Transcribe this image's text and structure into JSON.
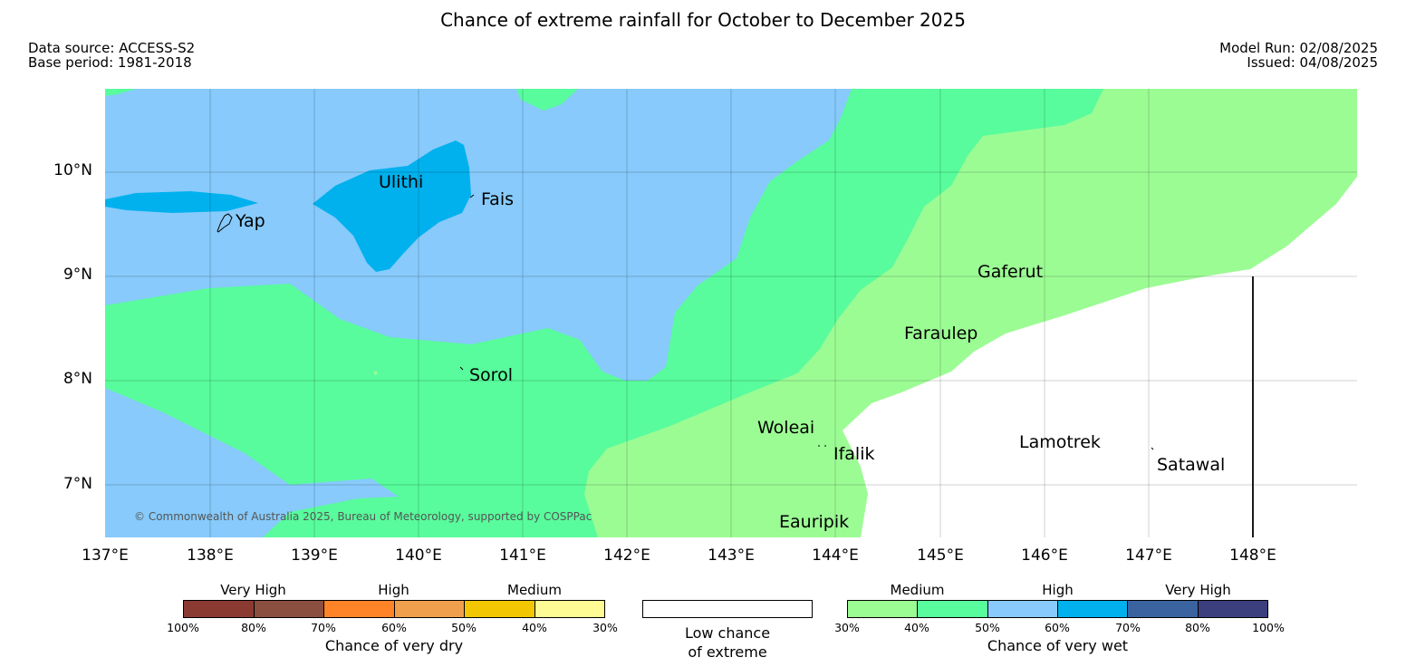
{
  "title": "Chance of extreme rainfall for October to December 2025",
  "meta_left": {
    "data_source": "Data source: ACCESS-S2",
    "base_period": "Base period: 1981-2018"
  },
  "meta_right": {
    "model_run": "Model Run: 02/08/2025",
    "issued": "Issued: 04/08/2025"
  },
  "map": {
    "lon_labels": [
      "137°E",
      "138°E",
      "139°E",
      "140°E",
      "141°E",
      "142°E",
      "143°E",
      "144°E",
      "145°E",
      "146°E",
      "147°E",
      "148°E"
    ],
    "lat_labels": [
      "10°N",
      "9°N",
      "8°N",
      "7°N"
    ],
    "copyright": "© Commonwealth of Australia 2025, Bureau of Meteorology, supported by COSPPac",
    "places": [
      "Ulithi",
      "Fais",
      "Yap",
      "Gaferut",
      "Faraulep",
      "Sorol",
      "Woleai",
      "Ifalik",
      "Lamotrek",
      "Satawal",
      "Eauripik"
    ],
    "colors": {
      "wet_30_40": "#9cfc94",
      "wet_40_50": "#58fc9c",
      "wet_50_60": "#87cafb",
      "wet_60_70": "#00b1ee",
      "low": "#ffffff"
    }
  },
  "legend_dry": {
    "headings": [
      "Very High",
      "High",
      "Medium"
    ],
    "ticks": [
      "100%",
      "80%",
      "70%",
      "60%",
      "50%",
      "40%",
      "30%"
    ],
    "title": "Chance of very dry",
    "colors": [
      "#8b3a32",
      "#8a4f3f",
      "#ff8427",
      "#f0a04d",
      "#f2c600",
      "#fffb94"
    ]
  },
  "legend_low": {
    "line1": "Low chance",
    "line2": "of extreme"
  },
  "legend_wet": {
    "headings": [
      "Medium",
      "High",
      "Very High"
    ],
    "ticks": [
      "30%",
      "40%",
      "50%",
      "60%",
      "70%",
      "80%",
      "100%"
    ],
    "title": "Chance of very wet",
    "colors": [
      "#9cfc94",
      "#58fc9c",
      "#87cafb",
      "#00b1ee",
      "#3a63a0",
      "#3c3f7e"
    ]
  }
}
